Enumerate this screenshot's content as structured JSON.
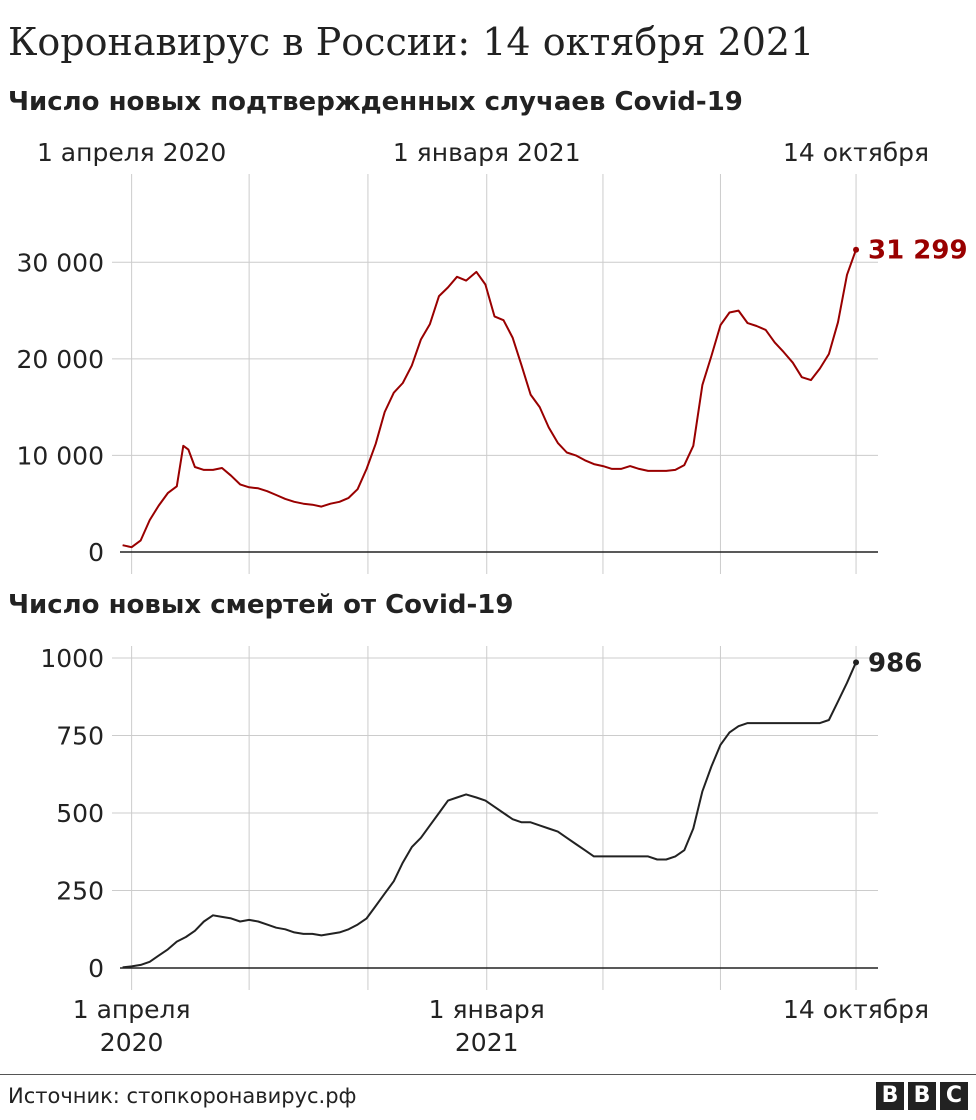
{
  "title": "Коронавирус в России: 14 октября 2021",
  "source": "Источник: стопкоронавирус.рф",
  "logo": [
    "B",
    "B",
    "C"
  ],
  "colors": {
    "cases": "#990000",
    "deaths": "#222222",
    "grid": "#cccccc"
  },
  "chart_data": [
    {
      "type": "line",
      "title": "Число новых подтвержденных случаев Covid-19",
      "x_ticks": [
        "1 апреля 2020",
        "1 января 2021",
        "14 октября"
      ],
      "y_ticks": [
        "0",
        "10 000",
        "20 000",
        "30 000"
      ],
      "ylim": [
        0,
        35000
      ],
      "grid": true,
      "end_label": "31 299",
      "series": [
        {
          "x": [
            "2020-03-25",
            "2020-04-01",
            "2020-04-08",
            "2020-04-15",
            "2020-04-22",
            "2020-04-29",
            "2020-05-06",
            "2020-05-11",
            "2020-05-15",
            "2020-05-20",
            "2020-05-27",
            "2020-06-03",
            "2020-06-10",
            "2020-06-17",
            "2020-06-24",
            "2020-07-01",
            "2020-07-08",
            "2020-07-15",
            "2020-07-22",
            "2020-07-29",
            "2020-08-05",
            "2020-08-12",
            "2020-08-19",
            "2020-08-26",
            "2020-09-02",
            "2020-09-09",
            "2020-09-16",
            "2020-09-23",
            "2020-09-30",
            "2020-10-07",
            "2020-10-14",
            "2020-10-21",
            "2020-10-28",
            "2020-11-04",
            "2020-11-11",
            "2020-11-18",
            "2020-11-25",
            "2020-12-02",
            "2020-12-09",
            "2020-12-16",
            "2020-12-24",
            "2020-12-31",
            "2021-01-07",
            "2021-01-14",
            "2021-01-21",
            "2021-01-28",
            "2021-02-04",
            "2021-02-11",
            "2021-02-18",
            "2021-02-25",
            "2021-03-04",
            "2021-03-11",
            "2021-03-18",
            "2021-03-25",
            "2021-04-01",
            "2021-04-08",
            "2021-04-15",
            "2021-04-22",
            "2021-04-29",
            "2021-05-06",
            "2021-05-13",
            "2021-05-20",
            "2021-05-27",
            "2021-06-03",
            "2021-06-10",
            "2021-06-17",
            "2021-06-24",
            "2021-07-01",
            "2021-07-08",
            "2021-07-15",
            "2021-07-22",
            "2021-07-29",
            "2021-08-05",
            "2021-08-12",
            "2021-08-19",
            "2021-08-26",
            "2021-09-02",
            "2021-09-09",
            "2021-09-16",
            "2021-09-23",
            "2021-09-30",
            "2021-10-07",
            "2021-10-14"
          ],
          "values": [
            700,
            500,
            1200,
            3300,
            4800,
            6100,
            6800,
            11000,
            10600,
            8800,
            8500,
            8500,
            8700,
            7900,
            7000,
            6700,
            6600,
            6300,
            5900,
            5500,
            5200,
            5000,
            4900,
            4700,
            5000,
            5200,
            5600,
            6500,
            8600,
            11200,
            14500,
            16500,
            17500,
            19300,
            22000,
            23600,
            26500,
            27400,
            28500,
            28100,
            29000,
            27700,
            24400,
            24000,
            22200,
            19300,
            16300,
            15000,
            12900,
            11300,
            10300,
            10000,
            9500,
            9100,
            8900,
            8600,
            8600,
            8900,
            8600,
            8400,
            8400,
            8400,
            8500,
            9000,
            11000,
            17300,
            20300,
            23500,
            24800,
            25000,
            23700,
            23400,
            23000,
            21700,
            20700,
            19600,
            18100,
            17800,
            19000,
            20500,
            23800,
            28700,
            31299
          ]
        }
      ]
    },
    {
      "type": "line",
      "title": "Число новых смертей от Covid-19",
      "x_ticks": [
        "1 апреля\n2020",
        "1 января\n2021",
        "14 октября"
      ],
      "y_ticks": [
        "0",
        "250",
        "500",
        "750",
        "1000"
      ],
      "ylim": [
        0,
        1000
      ],
      "grid": true,
      "end_label": "986",
      "series": [
        {
          "x": [
            "2020-03-25",
            "2020-04-01",
            "2020-04-08",
            "2020-04-15",
            "2020-04-22",
            "2020-04-29",
            "2020-05-06",
            "2020-05-13",
            "2020-05-20",
            "2020-05-27",
            "2020-06-03",
            "2020-06-10",
            "2020-06-17",
            "2020-06-24",
            "2020-07-01",
            "2020-07-08",
            "2020-07-15",
            "2020-07-22",
            "2020-07-29",
            "2020-08-05",
            "2020-08-12",
            "2020-08-19",
            "2020-08-26",
            "2020-09-02",
            "2020-09-09",
            "2020-09-16",
            "2020-09-23",
            "2020-09-30",
            "2020-10-07",
            "2020-10-14",
            "2020-10-21",
            "2020-10-28",
            "2020-11-04",
            "2020-11-11",
            "2020-11-18",
            "2020-11-25",
            "2020-12-02",
            "2020-12-09",
            "2020-12-16",
            "2020-12-24",
            "2020-12-31",
            "2021-01-07",
            "2021-01-14",
            "2021-01-21",
            "2021-01-28",
            "2021-02-04",
            "2021-02-11",
            "2021-02-18",
            "2021-02-25",
            "2021-03-04",
            "2021-03-11",
            "2021-03-18",
            "2021-03-25",
            "2021-04-01",
            "2021-04-08",
            "2021-04-15",
            "2021-04-22",
            "2021-04-29",
            "2021-05-06",
            "2021-05-13",
            "2021-05-20",
            "2021-05-27",
            "2021-06-03",
            "2021-06-10",
            "2021-06-17",
            "2021-06-24",
            "2021-07-01",
            "2021-07-08",
            "2021-07-15",
            "2021-07-22",
            "2021-07-29",
            "2021-08-05",
            "2021-08-12",
            "2021-08-19",
            "2021-08-26",
            "2021-09-02",
            "2021-09-09",
            "2021-09-16",
            "2021-09-23",
            "2021-09-30",
            "2021-10-07",
            "2021-10-14"
          ],
          "values": [
            2,
            5,
            10,
            20,
            40,
            60,
            85,
            100,
            120,
            150,
            170,
            165,
            160,
            150,
            155,
            150,
            140,
            130,
            125,
            115,
            110,
            110,
            105,
            110,
            115,
            125,
            140,
            160,
            200,
            240,
            280,
            340,
            390,
            420,
            460,
            500,
            540,
            550,
            560,
            550,
            540,
            520,
            500,
            480,
            470,
            470,
            460,
            450,
            440,
            420,
            400,
            380,
            360,
            360,
            360,
            360,
            360,
            360,
            360,
            350,
            350,
            360,
            380,
            450,
            570,
            650,
            720,
            760,
            780,
            790,
            790,
            790,
            790,
            790,
            790,
            790,
            790,
            790,
            800,
            860,
            920,
            986
          ]
        }
      ]
    }
  ]
}
